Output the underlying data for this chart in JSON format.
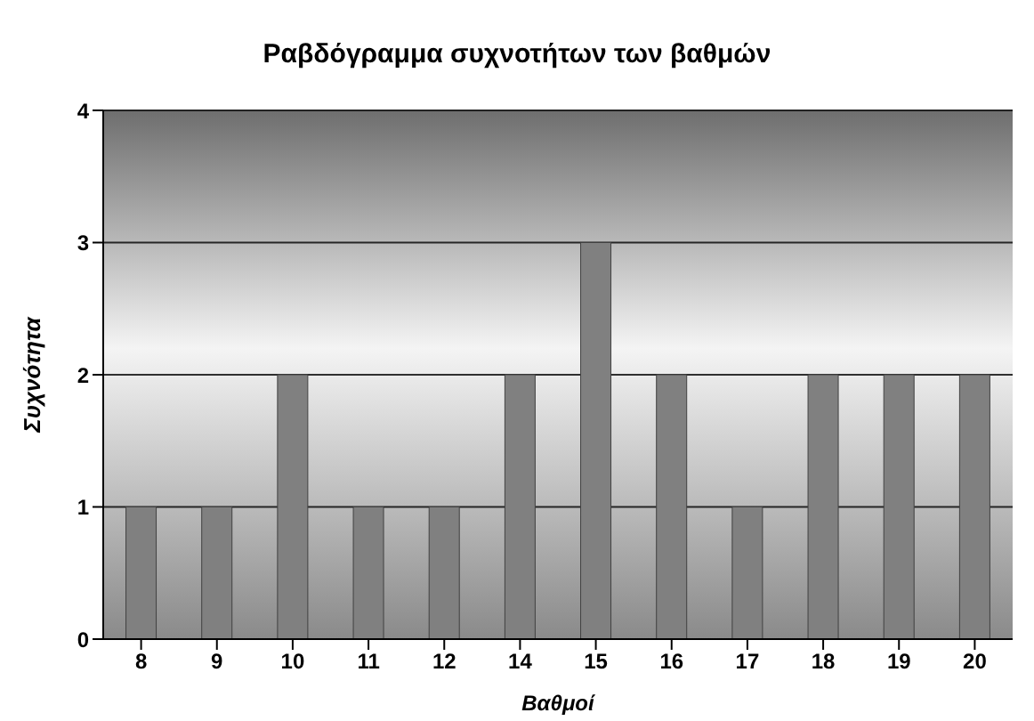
{
  "chart_data": {
    "type": "bar",
    "title": "Ραβδόγραμμα συχνοτήτων των βαθμών",
    "xlabel": "Βαθμοί",
    "ylabel": "Συχνότητα",
    "categories": [
      "8",
      "9",
      "10",
      "11",
      "12",
      "14",
      "15",
      "16",
      "17",
      "18",
      "19",
      "20"
    ],
    "series": [
      {
        "color": "#808080",
        "values": [
          1,
          1,
          2,
          1,
          1,
          2,
          3,
          2,
          1,
          2,
          2,
          2
        ]
      }
    ],
    "ylim": [
      0,
      4
    ],
    "yticks": [
      0,
      1,
      2,
      3,
      4
    ],
    "grid": "y",
    "legend": false
  }
}
